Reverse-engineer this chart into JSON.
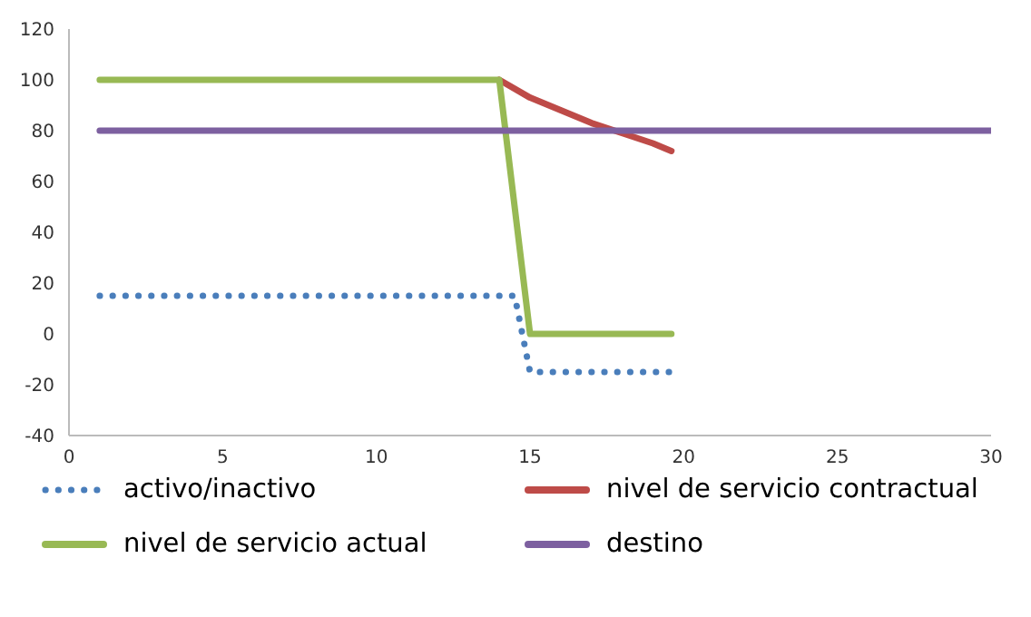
{
  "chart_data": {
    "type": "line",
    "series": [
      {
        "name": "activo/inactivo",
        "color": "#4a7ebb",
        "line_style": "dotted",
        "x": [
          1,
          14.5,
          15,
          19.6
        ],
        "values": [
          15,
          15,
          -15,
          -15
        ]
      },
      {
        "name": "nivel de servicio contractual",
        "color": "#be4b48",
        "x": [
          14,
          15,
          16,
          17,
          18,
          19,
          19.6
        ],
        "values": [
          100,
          93,
          88,
          83,
          79,
          75,
          72
        ]
      },
      {
        "name": "nivel de servicio actual",
        "color": "#98b954",
        "x": [
          1,
          14,
          15,
          19.6
        ],
        "values": [
          100,
          100,
          0,
          0
        ]
      },
      {
        "name": "destino",
        "color": "#7d60a0",
        "x": [
          1,
          30
        ],
        "values": [
          80,
          80
        ]
      }
    ],
    "xlim": [
      0,
      30
    ],
    "xticks": [
      0,
      5,
      10,
      15,
      20,
      25,
      30
    ],
    "ylim": [
      -40,
      120
    ],
    "yticks": [
      -40,
      -20,
      0,
      20,
      40,
      60,
      80,
      100,
      120
    ],
    "grid": false,
    "legend": "bottom",
    "marker": "none"
  }
}
